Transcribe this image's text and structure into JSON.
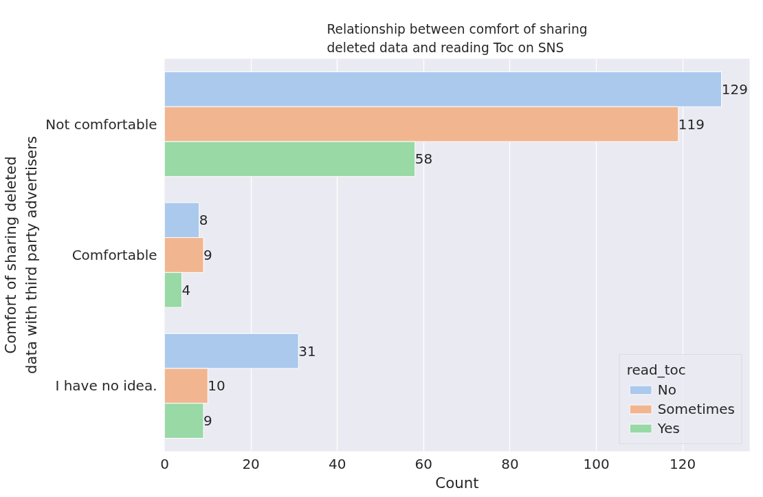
{
  "chart_data": {
    "type": "bar",
    "orientation": "horizontal",
    "title": "Relationship between comfort of sharing\ndeleted data and reading Toc on SNS",
    "xlabel": "Count",
    "ylabel": "Comfort of sharing deleted\ndata with third party advertisers",
    "legend_title": "read_toc",
    "categories": [
      "Not comfortable",
      "Comfortable",
      "I have no idea."
    ],
    "series": [
      {
        "name": "No",
        "color": "#abc9ed",
        "values": [
          129,
          8,
          31
        ]
      },
      {
        "name": "Sometimes",
        "color": "#f1b690",
        "values": [
          119,
          9,
          10
        ]
      },
      {
        "name": "Yes",
        "color": "#98d9a6",
        "values": [
          58,
          4,
          9
        ]
      }
    ],
    "xlim": [
      0,
      135.5
    ],
    "xticks": [
      0,
      20,
      40,
      60,
      80,
      100,
      120
    ],
    "grid": "x",
    "legend": "bottom right",
    "data_labels": true
  }
}
